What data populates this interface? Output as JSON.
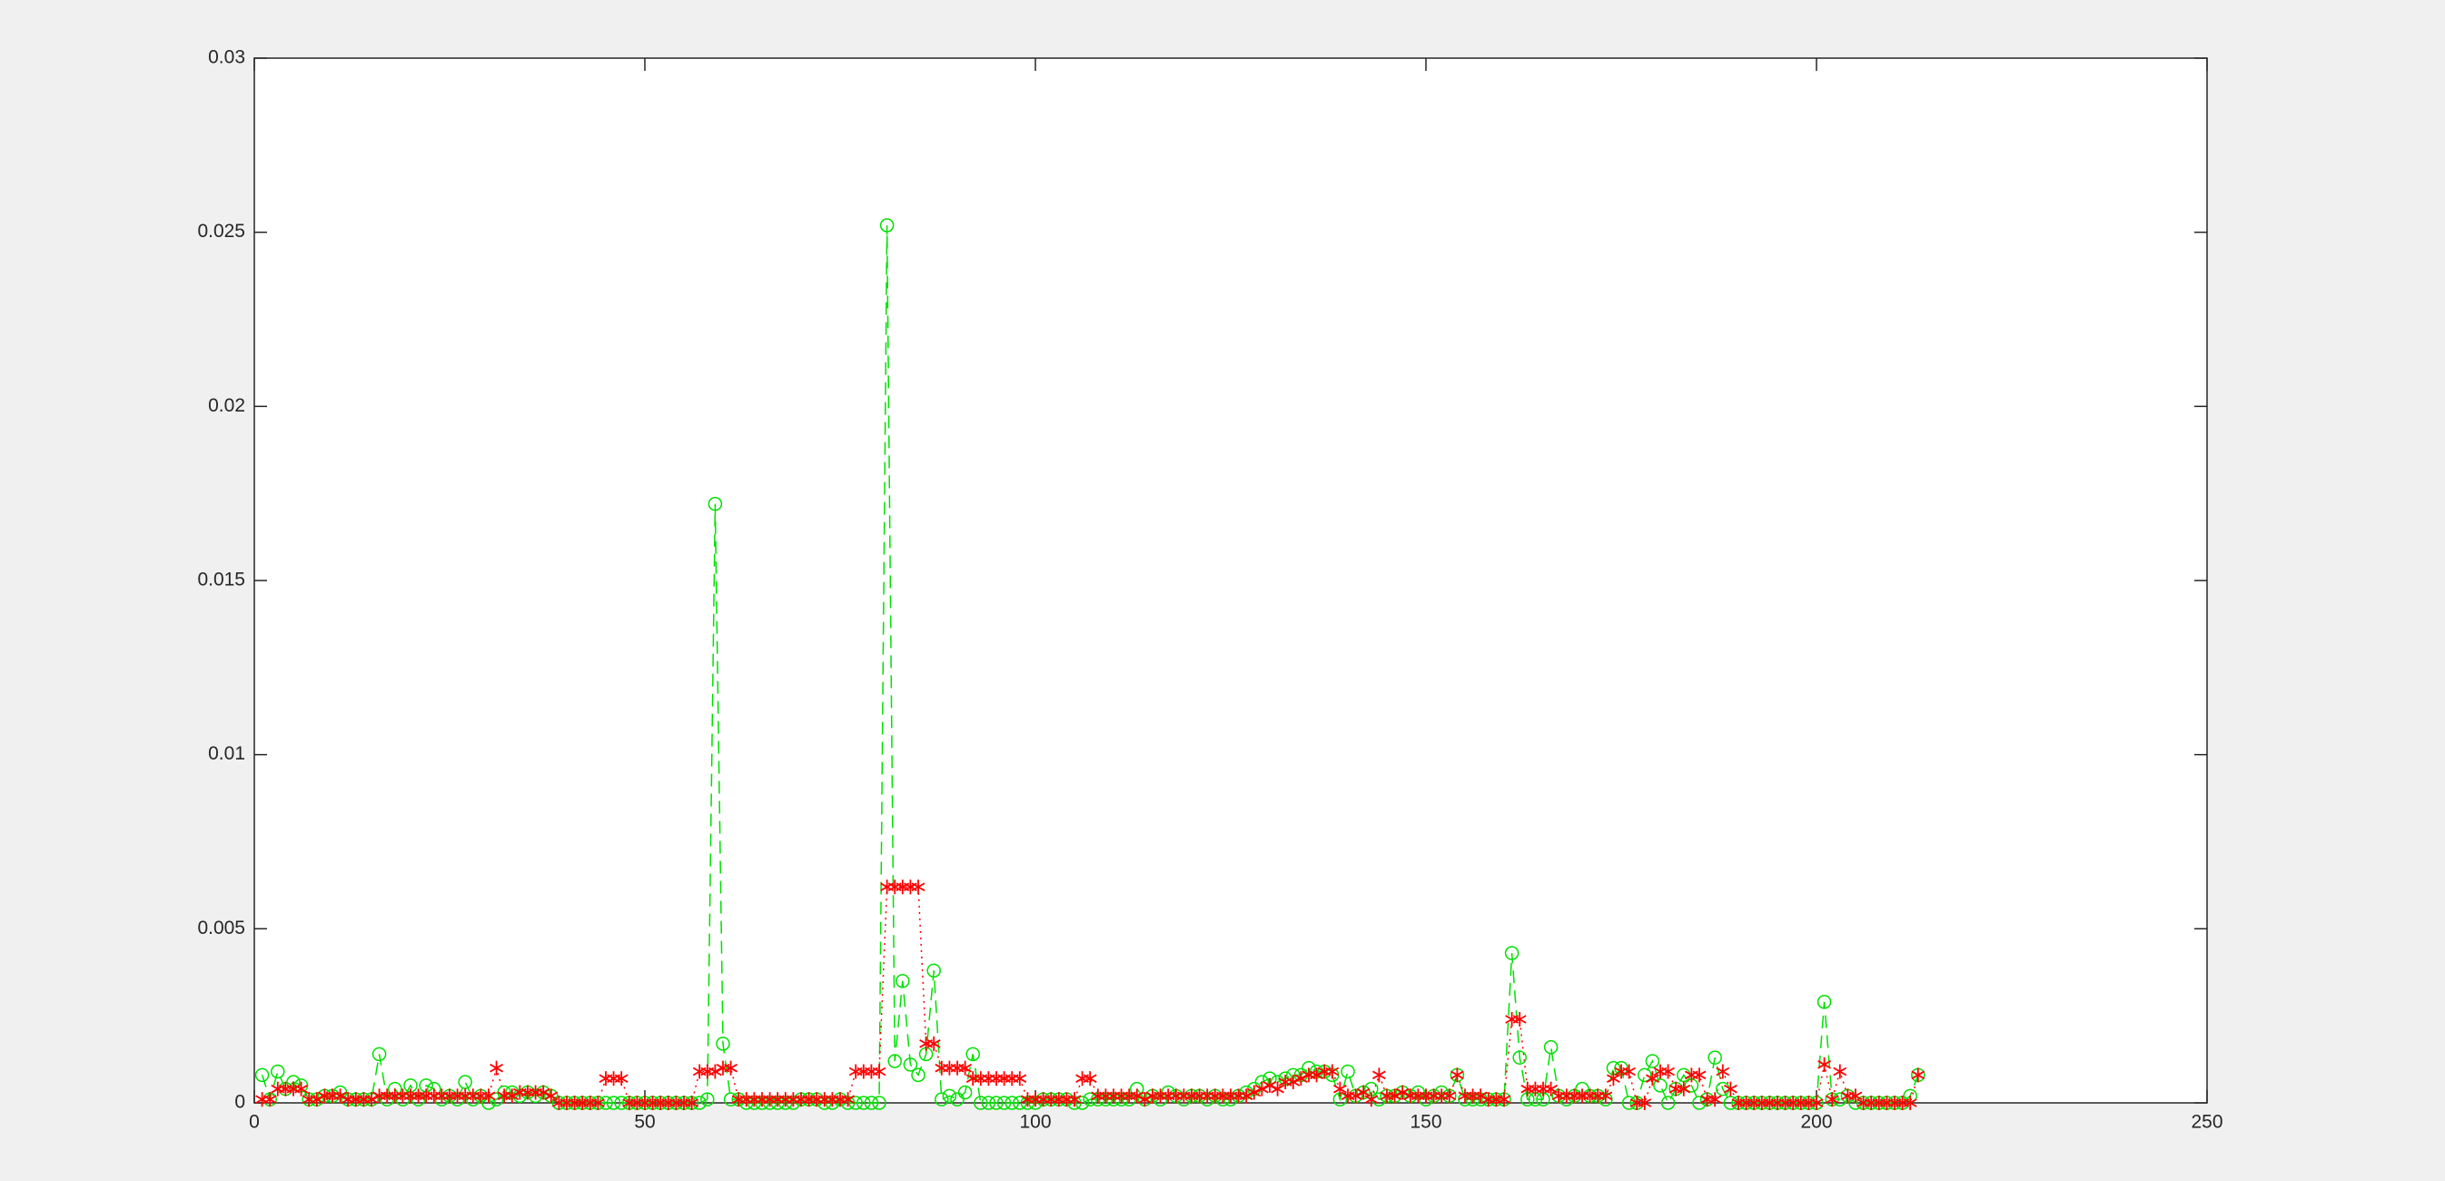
{
  "chart_data": {
    "type": "line",
    "x": [
      1,
      2,
      3,
      4,
      5,
      6,
      7,
      8,
      9,
      10,
      11,
      12,
      13,
      14,
      15,
      16,
      17,
      18,
      19,
      20,
      21,
      22,
      23,
      24,
      25,
      26,
      27,
      28,
      29,
      30,
      31,
      32,
      33,
      34,
      35,
      36,
      37,
      38,
      39,
      40,
      41,
      42,
      43,
      44,
      45,
      46,
      47,
      48,
      49,
      50,
      51,
      52,
      53,
      54,
      55,
      56,
      57,
      58,
      59,
      60,
      61,
      62,
      63,
      64,
      65,
      66,
      67,
      68,
      69,
      70,
      71,
      72,
      73,
      74,
      75,
      76,
      77,
      78,
      79,
      80,
      81,
      82,
      83,
      84,
      85,
      86,
      87,
      88,
      89,
      90,
      91,
      92,
      93,
      94,
      95,
      96,
      97,
      98,
      99,
      100,
      101,
      102,
      103,
      104,
      105,
      106,
      107,
      108,
      109,
      110,
      111,
      112,
      113,
      114,
      115,
      116,
      117,
      118,
      119,
      120,
      121,
      122,
      123,
      124,
      125,
      126,
      127,
      128,
      129,
      130,
      131,
      132,
      133,
      134,
      135,
      136,
      137,
      138,
      139,
      140,
      141,
      142,
      143,
      144,
      145,
      146,
      147,
      148,
      149,
      150,
      151,
      152,
      153,
      154,
      155,
      156,
      157,
      158,
      159,
      160,
      161,
      162,
      163,
      164,
      165,
      166,
      167,
      168,
      169,
      170,
      171,
      172,
      173,
      174,
      175,
      176,
      177,
      178,
      179,
      180,
      181,
      182,
      183,
      184,
      185,
      186,
      187,
      188,
      189,
      190,
      191,
      192,
      193,
      194,
      195,
      196,
      197,
      198,
      199,
      200,
      201,
      202,
      203,
      204,
      205,
      206,
      207,
      208,
      209,
      210,
      211,
      212,
      213
    ],
    "series": [
      {
        "color": "#00e000",
        "marker": "circle",
        "linestyle": "dashed",
        "values": [
          0.0008,
          0.0001,
          0.0009,
          0.0004,
          0.0006,
          0.0005,
          0.0001,
          0.0001,
          0.0002,
          0.0002,
          0.0003,
          0.0001,
          0.0001,
          0.0001,
          0.0001,
          0.0014,
          0.0001,
          0.0004,
          0.0001,
          0.0005,
          0.0001,
          0.0005,
          0.0004,
          0.0001,
          0.0002,
          0.0001,
          0.0006,
          0.0001,
          0.0002,
          0,
          0.0001,
          0.0003,
          0.0003,
          0.0002,
          0.0003,
          0.0002,
          0.0003,
          0.0002,
          0,
          0,
          0,
          0,
          0,
          0,
          0,
          0,
          0,
          0,
          0,
          0,
          0,
          0,
          0,
          0,
          0,
          0,
          0,
          0.0001,
          0.0172,
          0.0017,
          0.0001,
          0.0001,
          0,
          0,
          0,
          0,
          0,
          0,
          0,
          0.0001,
          0.0001,
          0.0001,
          0,
          0,
          0.0001,
          0,
          0,
          0,
          0,
          0,
          0.0252,
          0.0012,
          0.0035,
          0.0011,
          0.0008,
          0.0014,
          0.0038,
          0.0001,
          0.0002,
          0.0001,
          0.0003,
          0.0014,
          0,
          0,
          0,
          0,
          0,
          0,
          0,
          0,
          0.0001,
          0.0001,
          0.0001,
          0.0001,
          0,
          0,
          0.0001,
          0.0001,
          0.0001,
          0.0001,
          0.0001,
          0.0001,
          0.0004,
          0.0001,
          0.0002,
          0.0001,
          0.0003,
          0.0002,
          0.0001,
          0.0002,
          0.0002,
          0.0001,
          0.0002,
          0.0001,
          0.0001,
          0.0002,
          0.0003,
          0.0004,
          0.0006,
          0.0007,
          0.0006,
          0.0007,
          0.0008,
          0.0008,
          0.001,
          0.0009,
          0.0009,
          0.0008,
          0.0001,
          0.0009,
          0.0002,
          0.0003,
          0.0004,
          0.0001,
          0.0002,
          0.0002,
          0.0003,
          0.0002,
          0.0003,
          0.0001,
          0.0002,
          0.0003,
          0.0002,
          0.0008,
          0.0001,
          0.0001,
          0.0001,
          0.0001,
          0.0001,
          0.0001,
          0.0043,
          0.0013,
          0.0001,
          0.0001,
          0.0001,
          0.0016,
          0.0002,
          0.0001,
          0.0002,
          0.0004,
          0.0002,
          0.0002,
          0.0001,
          0.001,
          0.001,
          0,
          0,
          0.0008,
          0.0012,
          0.0005,
          0,
          0.0004,
          0.0008,
          0.0005,
          0,
          0.0001,
          0.0013,
          0.0004,
          0,
          0,
          0,
          0,
          0,
          0,
          0,
          0,
          0,
          0,
          0,
          0,
          0.0029,
          0.0001,
          0.0001,
          0.0002,
          0,
          0,
          0,
          0,
          0,
          0,
          0,
          0.0002,
          0.0008
        ]
      },
      {
        "color": "#ff0000",
        "marker": "asterisk",
        "linestyle": "dotted",
        "values": [
          0.0001,
          0.0001,
          0.0004,
          0.0004,
          0.0004,
          0.0004,
          0.0001,
          0.0001,
          0.0002,
          0.0002,
          0.0002,
          0.0001,
          0.0001,
          0.0001,
          0.0001,
          0.0002,
          0.0002,
          0.0002,
          0.0002,
          0.0002,
          0.0002,
          0.0002,
          0.0002,
          0.0002,
          0.0002,
          0.0002,
          0.0002,
          0.0002,
          0.0002,
          0.0002,
          0.001,
          0.0002,
          0.0002,
          0.0003,
          0.0003,
          0.0003,
          0.0003,
          0.0002,
          0,
          0,
          0,
          0,
          0,
          0,
          0.0007,
          0.0007,
          0.0007,
          0,
          0,
          0,
          0,
          0,
          0,
          0,
          0,
          0,
          0.0009,
          0.0009,
          0.0009,
          0.001,
          0.001,
          0.0001,
          0.0001,
          0.0001,
          0.0001,
          0.0001,
          0.0001,
          0.0001,
          0.0001,
          0.0001,
          0.0001,
          0.0001,
          0.0001,
          0.0001,
          0.0001,
          0.0001,
          0.0009,
          0.0009,
          0.0009,
          0.0009,
          0.0062,
          0.0062,
          0.0062,
          0.0062,
          0.0062,
          0.0017,
          0.0017,
          0.001,
          0.001,
          0.001,
          0.001,
          0.0007,
          0.0007,
          0.0007,
          0.0007,
          0.0007,
          0.0007,
          0.0007,
          0.0001,
          0.0001,
          0.0001,
          0.0001,
          0.0001,
          0.0001,
          0.0001,
          0.0007,
          0.0007,
          0.0002,
          0.0002,
          0.0002,
          0.0002,
          0.0002,
          0.0002,
          0.0001,
          0.0002,
          0.0002,
          0.0002,
          0.0002,
          0.0002,
          0.0002,
          0.0002,
          0.0002,
          0.0002,
          0.0002,
          0.0002,
          0.0002,
          0.0002,
          0.0003,
          0.0004,
          0.0005,
          0.0004,
          0.0006,
          0.0006,
          0.0007,
          0.0008,
          0.0008,
          0.0009,
          0.0009,
          0.0004,
          0.0002,
          0.0002,
          0.0003,
          0.0001,
          0.0008,
          0.0002,
          0.0002,
          0.0003,
          0.0002,
          0.0002,
          0.0002,
          0.0002,
          0.0002,
          0.0002,
          0.0008,
          0.0002,
          0.0002,
          0.0002,
          0.0001,
          0.0001,
          0.0001,
          0.0024,
          0.0024,
          0.0004,
          0.0004,
          0.0004,
          0.0004,
          0.0002,
          0.0002,
          0.0002,
          0.0002,
          0.0002,
          0.0002,
          0.0002,
          0.0007,
          0.0009,
          0.0009,
          0,
          0,
          0.0007,
          0.0009,
          0.0009,
          0.0004,
          0.0004,
          0.0008,
          0.0008,
          0.0001,
          0.0001,
          0.0009,
          0.0004,
          0,
          0,
          0,
          0,
          0,
          0,
          0,
          0,
          0,
          0,
          0,
          0.0011,
          0.0001,
          0.0009,
          0.0002,
          0.0002,
          0,
          0,
          0,
          0,
          0,
          0,
          0,
          0.0008
        ]
      }
    ],
    "xlim": [
      0,
      250
    ],
    "xticks": [
      0,
      50,
      100,
      150,
      200,
      250
    ],
    "ylim": [
      0,
      0.03
    ],
    "yticks": [
      0,
      0.005,
      0.01,
      0.015,
      0.02,
      0.025,
      0.03
    ],
    "grid": false
  }
}
